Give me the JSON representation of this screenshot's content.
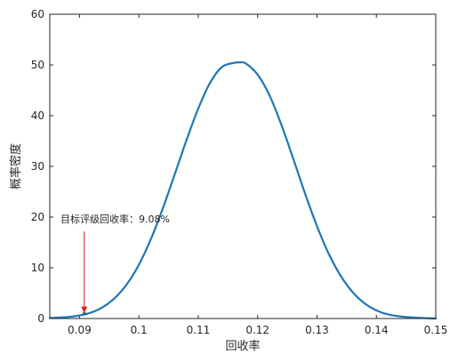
{
  "chart_data": {
    "type": "line",
    "xlabel": "回收率",
    "ylabel": "概率密度",
    "xlim": [
      0.085,
      0.15
    ],
    "ylim": [
      0,
      60
    ],
    "x_ticks": [
      0.09,
      0.1,
      0.11,
      0.12,
      0.13,
      0.14,
      0.15
    ],
    "x_tick_labels": [
      "0.09",
      "0.1",
      "0.11",
      "0.12",
      "0.13",
      "0.14",
      "0.15"
    ],
    "y_ticks": [
      0,
      10,
      20,
      30,
      40,
      50,
      60
    ],
    "y_tick_labels": [
      "0",
      "10",
      "20",
      "30",
      "40",
      "50",
      "60"
    ],
    "grid": false,
    "series": [
      {
        "color": "#1f77b4",
        "x": [
          0.085,
          0.088,
          0.09,
          0.092,
          0.094,
          0.096,
          0.098,
          0.1,
          0.102,
          0.104,
          0.106,
          0.108,
          0.11,
          0.112,
          0.114,
          0.116,
          0.117,
          0.118,
          0.12,
          0.122,
          0.124,
          0.126,
          0.128,
          0.13,
          0.132,
          0.134,
          0.136,
          0.138,
          0.14,
          0.142,
          0.145,
          0.15
        ],
        "y": [
          0.1,
          0.3,
          0.6,
          1.2,
          2.3,
          4.1,
          6.8,
          10.6,
          15.6,
          21.6,
          28.3,
          35.1,
          41.4,
          46.5,
          49.6,
          50.4,
          50.5,
          50.3,
          48.1,
          44.0,
          38.2,
          31.5,
          24.6,
          18.2,
          12.7,
          8.4,
          5.2,
          3.0,
          1.6,
          0.8,
          0.3,
          0.0
        ]
      }
    ],
    "annotation": {
      "text": "目标评级回收率：9.08%",
      "x": 0.0908,
      "y": 0.6,
      "color": "#e02020"
    }
  }
}
